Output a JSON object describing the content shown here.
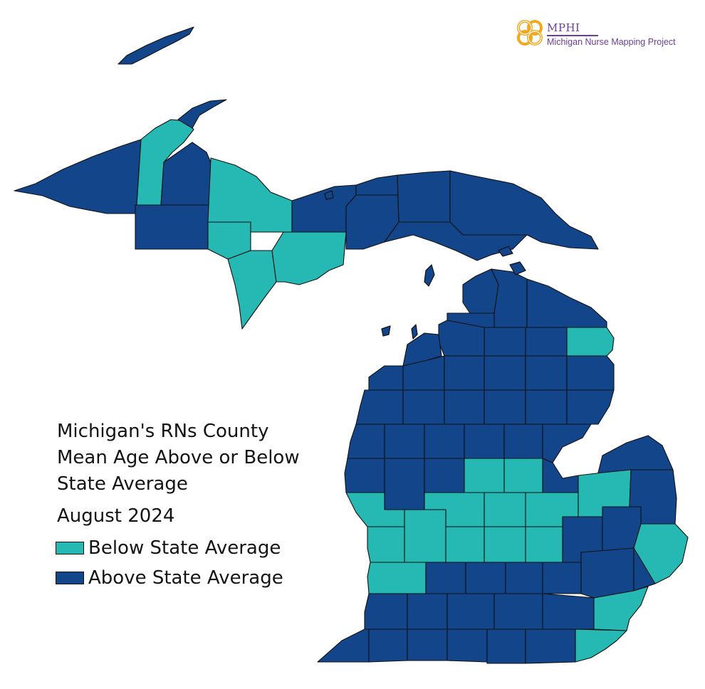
{
  "legend": {
    "title_line1": "Michigan's RNs County",
    "title_line2": "Mean Age Above or Below",
    "title_line3": "State Average",
    "date": "August 2024",
    "items": [
      {
        "label": "Below State Average",
        "color": "#26b8b2"
      },
      {
        "label": "Above State Average",
        "color": "#12458a"
      }
    ]
  },
  "logo": {
    "name": "MPHI",
    "subtitle": "Michigan Nurse Mapping Project",
    "accent": "#6b3f97",
    "mark_color": "#f2a81d"
  },
  "map": {
    "region": "Michigan counties",
    "below_color": "#26b8b2",
    "above_color": "#12458a",
    "border_color": "#111111"
  }
}
